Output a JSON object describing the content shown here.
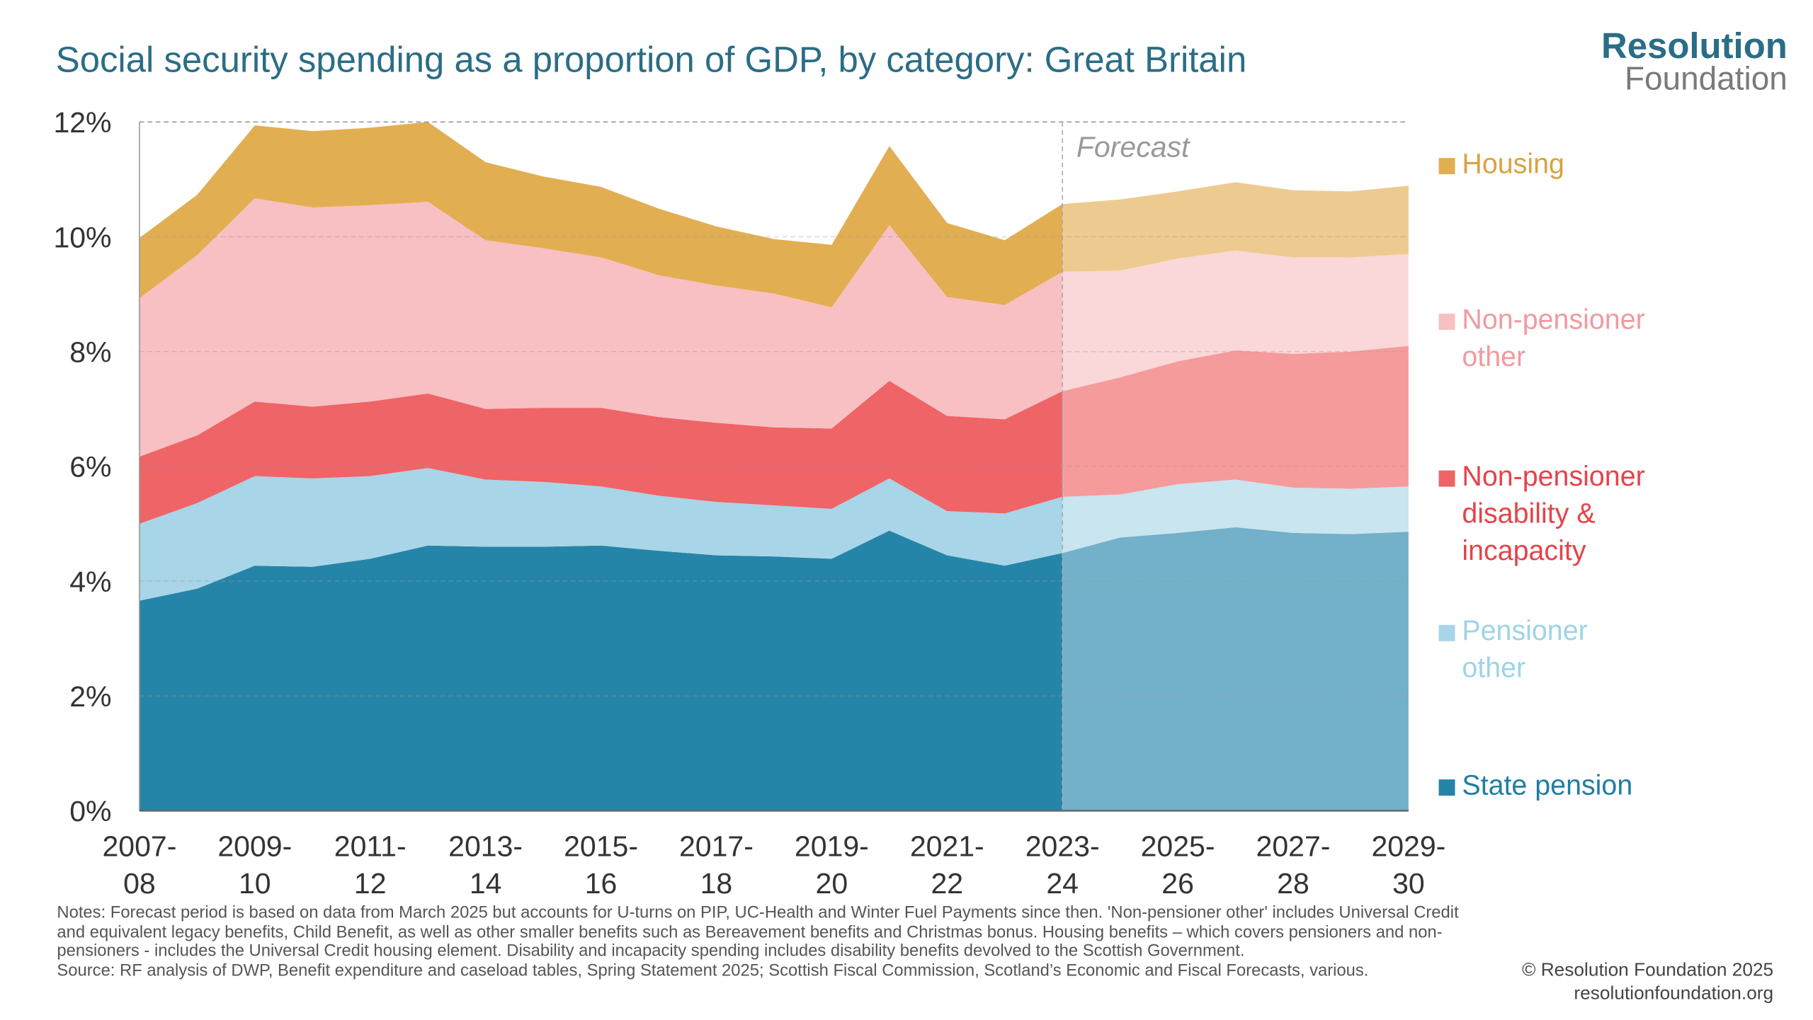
{
  "chart_data": {
    "type": "area",
    "title": "Social security spending as a proportion of GDP, by category: Great Britain",
    "stacked": true,
    "categories": [
      "2007-08",
      "2008-09",
      "2009-10",
      "2010-11",
      "2011-12",
      "2012-13",
      "2013-14",
      "2014-15",
      "2015-16",
      "2016-17",
      "2017-18",
      "2018-19",
      "2019-20",
      "2020-21",
      "2021-22",
      "2022-23",
      "2023-24",
      "2024-25",
      "2025-26",
      "2026-27",
      "2027-28",
      "2028-29",
      "2029-30"
    ],
    "tick_labels": [
      [
        "2007-",
        "08"
      ],
      [
        "2009-",
        "10"
      ],
      [
        "2011-",
        "12"
      ],
      [
        "2013-",
        "14"
      ],
      [
        "2015-",
        "16"
      ],
      [
        "2017-",
        "18"
      ],
      [
        "2019-",
        "20"
      ],
      [
        "2021-",
        "22"
      ],
      [
        "2023-",
        "24"
      ],
      [
        "2025-",
        "26"
      ],
      [
        "2027-",
        "28"
      ],
      [
        "2029-",
        "30"
      ]
    ],
    "forecast_start": "2023-24",
    "forecast_label": "Forecast",
    "ylim": [
      0,
      12
    ],
    "yticks": [
      "0%",
      "2%",
      "4%",
      "6%",
      "8%",
      "10%",
      "12%"
    ],
    "grid": true,
    "legend_placement": "right",
    "series": [
      {
        "name": "State pension",
        "color": "#2585a8",
        "forecast_color": "#73b0c9",
        "legend_color": "#1f7ea5",
        "values": [
          3.66,
          3.87,
          4.27,
          4.25,
          4.39,
          4.62,
          4.6,
          4.6,
          4.62,
          4.53,
          4.45,
          4.43,
          4.39,
          4.88,
          4.45,
          4.27,
          4.49,
          4.76,
          4.84,
          4.94,
          4.84,
          4.82,
          4.86
        ]
      },
      {
        "name": "Pensioner other",
        "color": "#a8d5e7",
        "forecast_color": "#c8e5f0",
        "legend_color": "#9fd3e6",
        "values": [
          1.34,
          1.49,
          1.56,
          1.54,
          1.44,
          1.35,
          1.17,
          1.13,
          1.03,
          0.96,
          0.93,
          0.89,
          0.87,
          0.91,
          0.77,
          0.91,
          0.98,
          0.75,
          0.85,
          0.83,
          0.79,
          0.79,
          0.79
        ]
      },
      {
        "name": "Non-pensioner disability & incapacity",
        "color": "#ef6467",
        "forecast_color": "#f59b9b",
        "legend_color": "#e5434a",
        "values": [
          1.17,
          1.18,
          1.3,
          1.25,
          1.3,
          1.3,
          1.23,
          1.29,
          1.37,
          1.37,
          1.38,
          1.36,
          1.4,
          1.7,
          1.66,
          1.64,
          1.84,
          2.04,
          2.14,
          2.25,
          2.33,
          2.39,
          2.45
        ]
      },
      {
        "name": "Non-pensioner other",
        "color": "#f8c0c3",
        "forecast_color": "#fad7d8",
        "legend_color": "#f19aa0",
        "values": [
          2.76,
          3.14,
          3.54,
          3.47,
          3.42,
          3.34,
          2.94,
          2.78,
          2.62,
          2.47,
          2.39,
          2.33,
          2.11,
          2.71,
          2.07,
          1.99,
          2.08,
          1.86,
          1.79,
          1.74,
          1.68,
          1.64,
          1.6
        ]
      },
      {
        "name": "Housing",
        "color": "#e2ae52",
        "forecast_color": "#edcb90",
        "legend_color": "#d9a340",
        "values": [
          1.05,
          1.05,
          1.27,
          1.33,
          1.35,
          1.39,
          1.36,
          1.25,
          1.23,
          1.16,
          1.03,
          0.95,
          1.09,
          1.38,
          1.29,
          1.13,
          1.18,
          1.24,
          1.17,
          1.19,
          1.17,
          1.15,
          1.19
        ]
      }
    ]
  },
  "legend": {
    "housing": [
      "Housing"
    ],
    "np_other": [
      "Non-pensioner",
      "other"
    ],
    "disability": [
      "Non-pensioner",
      "disability &",
      "incapacity"
    ],
    "pensioner_other": [
      "Pensioner",
      "other"
    ],
    "state_pension": [
      "State pension"
    ]
  },
  "logo": {
    "line1": "Resolution",
    "line2": "Foundation"
  },
  "notes": "Notes: Forecast period is based on data from March 2025 but accounts for U-turns on PIP, UC-Health and Winter Fuel Payments since then. 'Non-pensioner other' includes Universal Credit and equivalent legacy benefits, Child Benefit, as well as other smaller benefits such as Bereavement benefits and Christmas bonus. Housing benefits – which covers pensioners and non-pensioners - includes the Universal Credit housing element. Disability and incapacity spending includes disability benefits devolved to the Scottish Government.",
  "source": "Source: RF analysis of DWP, Benefit expenditure and caseload tables, Spring Statement 2025; Scottish Fiscal Commission, Scotland’s Economic and Fiscal Forecasts, various.",
  "copyright": "© Resolution Foundation 2025",
  "website": "resolutionfoundation.org"
}
